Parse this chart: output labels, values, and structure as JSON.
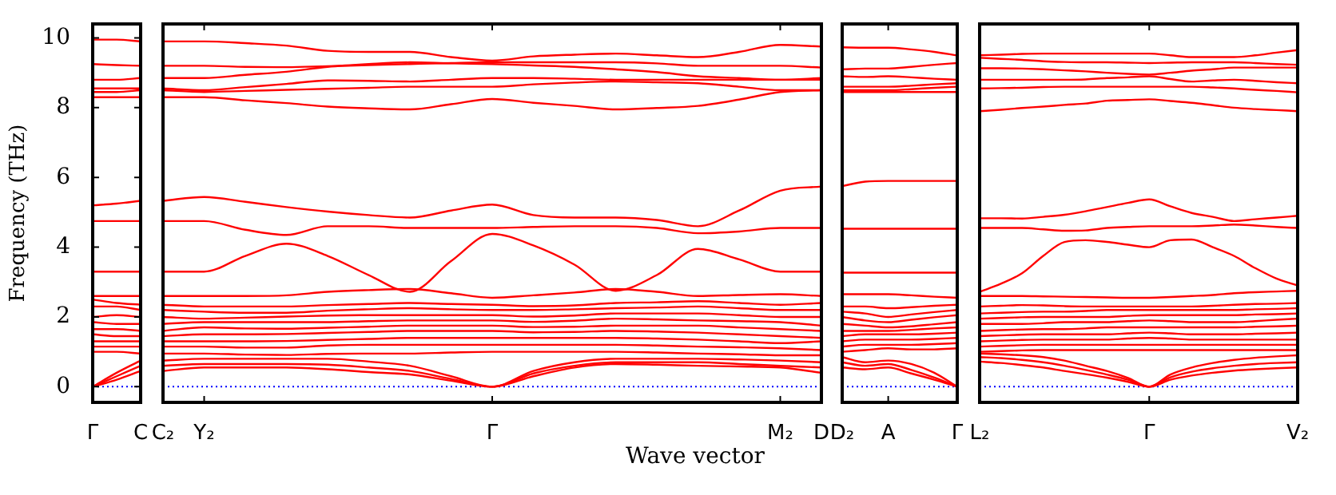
{
  "chart_data": [
    {
      "type": "line",
      "ylabel": "Frequency (THz)",
      "categories": [
        "Γ",
        null,
        "C"
      ],
      "ylim": [
        -0.45,
        10.4
      ],
      "yticks": [
        0,
        2,
        4,
        6,
        8,
        10
      ],
      "ref_lines": [
        {
          "axis": "y",
          "value": 0,
          "color": "#0000ff",
          "line_style": "dotted"
        }
      ],
      "series": [
        {
          "color": "#ff0000",
          "values": [
            9.95,
            9.95,
            9.9
          ]
        },
        {
          "color": "#ff0000",
          "values": [
            9.25,
            9.22,
            9.2
          ]
        },
        {
          "color": "#ff0000",
          "values": [
            8.8,
            8.8,
            8.85
          ]
        },
        {
          "color": "#ff0000",
          "values": [
            8.55,
            8.55,
            8.55
          ]
        },
        {
          "color": "#ff0000",
          "values": [
            8.45,
            8.45,
            8.5
          ]
        },
        {
          "color": "#ff0000",
          "values": [
            8.3,
            8.3,
            8.3
          ]
        },
        {
          "color": "#ff0000",
          "values": [
            5.2,
            5.25,
            5.33
          ]
        },
        {
          "color": "#ff0000",
          "values": [
            4.75,
            4.75,
            4.75
          ]
        },
        {
          "color": "#ff0000",
          "values": [
            3.3,
            3.3,
            3.3
          ]
        },
        {
          "color": "#ff0000",
          "values": [
            2.6,
            2.6,
            2.6
          ]
        },
        {
          "color": "#ff0000",
          "values": [
            2.5,
            2.4,
            2.35
          ]
        },
        {
          "color": "#ff0000",
          "values": [
            2.3,
            2.3,
            2.2
          ]
        },
        {
          "color": "#ff0000",
          "values": [
            2.0,
            2.05,
            2.0
          ]
        },
        {
          "color": "#ff0000",
          "values": [
            1.85,
            1.8,
            1.8
          ]
        },
        {
          "color": "#ff0000",
          "values": [
            1.65,
            1.65,
            1.6
          ]
        },
        {
          "color": "#ff0000",
          "values": [
            1.5,
            1.45,
            1.45
          ]
        },
        {
          "color": "#ff0000",
          "values": [
            1.3,
            1.3,
            1.3
          ]
        },
        {
          "color": "#ff0000",
          "values": [
            1.15,
            1.15,
            1.15
          ]
        },
        {
          "color": "#ff0000",
          "values": [
            1.0,
            1.0,
            0.95
          ]
        },
        {
          "color": "#ff0000",
          "values": [
            0,
            0.4,
            0.75
          ]
        },
        {
          "color": "#ff0000",
          "values": [
            0,
            0.3,
            0.6
          ]
        },
        {
          "color": "#ff0000",
          "values": [
            0,
            0.2,
            0.45
          ]
        }
      ]
    },
    {
      "type": "line",
      "xlabel": "Wave vector",
      "categories": [
        "C₂",
        "Y₂",
        null,
        null,
        null,
        null,
        null,
        null,
        "Γ",
        null,
        null,
        null,
        null,
        null,
        null,
        "M₂",
        "D"
      ],
      "ylim": [
        -0.45,
        10.4
      ],
      "tick_labels": "x",
      "ref_lines": [
        {
          "axis": "y",
          "value": 0,
          "color": "#0000ff",
          "line_style": "dotted"
        }
      ],
      "series": [
        {
          "color": "#ff0000",
          "values": [
            9.9,
            9.9,
            9.85,
            9.78,
            9.63,
            9.6,
            9.6,
            9.45,
            9.35,
            9.47,
            9.52,
            9.55,
            9.5,
            9.45,
            9.6,
            9.8,
            9.75
          ]
        },
        {
          "color": "#ff0000",
          "values": [
            9.2,
            9.2,
            9.17,
            9.16,
            9.19,
            9.22,
            9.25,
            9.28,
            9.3,
            9.3,
            9.3,
            9.3,
            9.27,
            9.2,
            9.2,
            9.2,
            9.15
          ]
        },
        {
          "color": "#ff0000",
          "values": [
            8.85,
            8.85,
            8.94,
            9.03,
            9.17,
            9.25,
            9.3,
            9.27,
            9.25,
            9.21,
            9.17,
            9.1,
            9.02,
            8.9,
            8.85,
            8.8,
            8.8
          ]
        },
        {
          "color": "#ff0000",
          "values": [
            8.55,
            8.5,
            8.59,
            8.68,
            8.78,
            8.77,
            8.75,
            8.8,
            8.85,
            8.85,
            8.83,
            8.8,
            8.8,
            8.8,
            8.8,
            8.8,
            8.85
          ]
        },
        {
          "color": "#ff0000",
          "values": [
            8.5,
            8.45,
            8.48,
            8.51,
            8.54,
            8.57,
            8.6,
            8.6,
            8.6,
            8.67,
            8.72,
            8.75,
            8.73,
            8.7,
            8.6,
            8.5,
            8.5
          ]
        },
        {
          "color": "#ff0000",
          "values": [
            8.3,
            8.3,
            8.21,
            8.13,
            8.03,
            7.98,
            7.95,
            8.1,
            8.25,
            8.14,
            8.05,
            7.95,
            7.99,
            8.05,
            8.23,
            8.45,
            8.5
          ]
        },
        {
          "color": "#ff0000",
          "values": [
            5.33,
            5.44,
            5.3,
            5.15,
            5.02,
            4.92,
            4.85,
            5.05,
            5.22,
            4.92,
            4.85,
            4.85,
            4.78,
            4.6,
            5.05,
            5.62,
            5.74
          ]
        },
        {
          "color": "#ff0000",
          "values": [
            4.75,
            4.75,
            4.5,
            4.35,
            4.6,
            4.6,
            4.55,
            4.55,
            4.55,
            4.58,
            4.6,
            4.6,
            4.55,
            4.4,
            4.45,
            4.55,
            4.55
          ]
        },
        {
          "color": "#ff0000",
          "values": [
            3.3,
            3.3,
            3.75,
            4.1,
            3.75,
            3.2,
            2.72,
            3.6,
            4.38,
            4.05,
            3.5,
            2.75,
            3.2,
            3.95,
            3.65,
            3.3,
            3.3
          ]
        },
        {
          "color": "#ff0000",
          "values": [
            2.6,
            2.6,
            2.6,
            2.62,
            2.72,
            2.77,
            2.8,
            2.68,
            2.55,
            2.62,
            2.7,
            2.8,
            2.72,
            2.6,
            2.63,
            2.65,
            2.6
          ]
        },
        {
          "color": "#ff0000",
          "values": [
            2.35,
            2.3,
            2.3,
            2.3,
            2.34,
            2.37,
            2.4,
            2.37,
            2.35,
            2.31,
            2.33,
            2.4,
            2.42,
            2.45,
            2.4,
            2.35,
            2.4
          ]
        },
        {
          "color": "#ff0000",
          "values": [
            2.2,
            2.15,
            2.12,
            2.12,
            2.18,
            2.22,
            2.25,
            2.22,
            2.2,
            2.2,
            2.22,
            2.25,
            2.27,
            2.3,
            2.25,
            2.2,
            2.2
          ]
        },
        {
          "color": "#ff0000",
          "values": [
            2.0,
            1.95,
            1.98,
            2.01,
            2.04,
            2.05,
            2.05,
            2.05,
            2.05,
            2.01,
            2.04,
            2.1,
            2.1,
            2.1,
            2.05,
            2.0,
            2.0
          ]
        },
        {
          "color": "#ff0000",
          "values": [
            1.8,
            1.85,
            1.85,
            1.85,
            1.85,
            1.88,
            1.9,
            1.9,
            1.9,
            1.86,
            1.89,
            1.95,
            1.93,
            1.9,
            1.88,
            1.85,
            1.75
          ]
        },
        {
          "color": "#ff0000",
          "values": [
            1.6,
            1.7,
            1.67,
            1.66,
            1.69,
            1.72,
            1.75,
            1.75,
            1.75,
            1.71,
            1.72,
            1.75,
            1.75,
            1.75,
            1.7,
            1.65,
            1.6
          ]
        },
        {
          "color": "#ff0000",
          "values": [
            1.45,
            1.5,
            1.5,
            1.51,
            1.54,
            1.57,
            1.6,
            1.6,
            1.6,
            1.56,
            1.57,
            1.6,
            1.58,
            1.55,
            1.5,
            1.45,
            1.4
          ]
        },
        {
          "color": "#ff0000",
          "values": [
            1.3,
            1.3,
            1.3,
            1.31,
            1.34,
            1.37,
            1.4,
            1.4,
            1.4,
            1.4,
            1.4,
            1.4,
            1.38,
            1.35,
            1.3,
            1.25,
            1.3
          ]
        },
        {
          "color": "#ff0000",
          "values": [
            1.15,
            1.15,
            1.12,
            1.12,
            1.18,
            1.2,
            1.2,
            1.2,
            1.2,
            1.2,
            1.2,
            1.2,
            1.18,
            1.15,
            1.13,
            1.1,
            1.05
          ]
        },
        {
          "color": "#ff0000",
          "values": [
            0.95,
            0.95,
            0.92,
            0.91,
            0.94,
            0.95,
            0.95,
            0.98,
            1.0,
            1.0,
            1.0,
            1.0,
            0.98,
            0.95,
            0.93,
            0.9,
            0.9
          ]
        },
        {
          "color": "#ff0000",
          "values": [
            0.75,
            0.8,
            0.8,
            0.8,
            0.8,
            0.72,
            0.6,
            0.3,
            0,
            0.45,
            0.7,
            0.8,
            0.8,
            0.8,
            0.78,
            0.75,
            0.7
          ]
        },
        {
          "color": "#ff0000",
          "values": [
            0.6,
            0.65,
            0.65,
            0.65,
            0.63,
            0.55,
            0.45,
            0.22,
            0,
            0.38,
            0.6,
            0.7,
            0.7,
            0.7,
            0.65,
            0.6,
            0.55
          ]
        },
        {
          "color": "#ff0000",
          "values": [
            0.45,
            0.55,
            0.55,
            0.55,
            0.5,
            0.42,
            0.35,
            0.17,
            0,
            0.3,
            0.55,
            0.65,
            0.63,
            0.6,
            0.58,
            0.55,
            0.4
          ]
        }
      ]
    },
    {
      "type": "line",
      "categories": [
        "D₂",
        null,
        "A",
        null,
        null,
        "Γ"
      ],
      "ylim": [
        -0.45,
        10.4
      ],
      "tick_labels": "x",
      "ref_lines": [
        {
          "axis": "y",
          "value": 0,
          "color": "#0000ff",
          "line_style": "dotted"
        }
      ],
      "series": [
        {
          "color": "#ff0000",
          "values": [
            9.73,
            9.72,
            9.72,
            9.67,
            9.6,
            9.5
          ]
        },
        {
          "color": "#ff0000",
          "values": [
            9.1,
            9.12,
            9.12,
            9.17,
            9.23,
            9.28
          ]
        },
        {
          "color": "#ff0000",
          "values": [
            8.9,
            8.88,
            8.9,
            8.87,
            8.83,
            8.8
          ]
        },
        {
          "color": "#ff0000",
          "values": [
            8.6,
            8.6,
            8.6,
            8.63,
            8.67,
            8.7
          ]
        },
        {
          "color": "#ff0000",
          "values": [
            8.5,
            8.5,
            8.5,
            8.53,
            8.57,
            8.6
          ]
        },
        {
          "color": "#ff0000",
          "values": [
            8.45,
            8.45,
            8.45,
            8.45,
            8.45,
            8.45
          ]
        },
        {
          "color": "#ff0000",
          "values": [
            5.75,
            5.88,
            5.9,
            5.9,
            5.9,
            5.9
          ]
        },
        {
          "color": "#ff0000",
          "values": [
            4.53,
            4.53,
            4.53,
            4.53,
            4.53,
            4.53
          ]
        },
        {
          "color": "#ff0000",
          "values": [
            3.27,
            3.27,
            3.27,
            3.27,
            3.27,
            3.27
          ]
        },
        {
          "color": "#ff0000",
          "values": [
            2.65,
            2.65,
            2.65,
            2.62,
            2.58,
            2.55
          ]
        },
        {
          "color": "#ff0000",
          "values": [
            2.3,
            2.3,
            2.25,
            2.28,
            2.32,
            2.35
          ]
        },
        {
          "color": "#ff0000",
          "values": [
            2.15,
            2.1,
            2.0,
            2.07,
            2.14,
            2.2
          ]
        },
        {
          "color": "#ff0000",
          "values": [
            2.0,
            1.9,
            1.85,
            1.92,
            1.99,
            2.05
          ]
        },
        {
          "color": "#ff0000",
          "values": [
            1.8,
            1.75,
            1.7,
            1.73,
            1.79,
            1.85
          ]
        },
        {
          "color": "#ff0000",
          "values": [
            1.6,
            1.6,
            1.6,
            1.63,
            1.67,
            1.7
          ]
        },
        {
          "color": "#ff0000",
          "values": [
            1.45,
            1.5,
            1.5,
            1.5,
            1.52,
            1.55
          ]
        },
        {
          "color": "#ff0000",
          "values": [
            1.3,
            1.35,
            1.35,
            1.35,
            1.37,
            1.4
          ]
        },
        {
          "color": "#ff0000",
          "values": [
            1.15,
            1.2,
            1.2,
            1.2,
            1.22,
            1.25
          ]
        },
        {
          "color": "#ff0000",
          "values": [
            1.0,
            1.05,
            1.1,
            1.07,
            1.07,
            1.1
          ]
        },
        {
          "color": "#ff0000",
          "values": [
            0.85,
            0.7,
            0.75,
            0.65,
            0.4,
            0
          ]
        },
        {
          "color": "#ff0000",
          "values": [
            0.7,
            0.6,
            0.65,
            0.48,
            0.26,
            0
          ]
        },
        {
          "color": "#ff0000",
          "values": [
            0.55,
            0.5,
            0.55,
            0.38,
            0.2,
            0
          ]
        }
      ]
    },
    {
      "type": "line",
      "categories": [
        "L₂",
        null,
        null,
        null,
        null,
        null,
        null,
        null,
        "Γ",
        null,
        null,
        null,
        null,
        null,
        null,
        "V₂"
      ],
      "ylim": [
        -0.45,
        10.4
      ],
      "tick_labels": "x",
      "ref_lines": [
        {
          "axis": "y",
          "value": 0,
          "color": "#0000ff",
          "line_style": "dotted"
        }
      ],
      "series": [
        {
          "color": "#ff0000",
          "values": [
            9.5,
            9.52,
            9.54,
            9.55,
            9.55,
            9.55,
            9.55,
            9.55,
            9.55,
            9.5,
            9.45,
            9.45,
            9.45,
            9.5,
            9.58,
            9.65
          ]
        },
        {
          "color": "#ff0000",
          "values": [
            9.43,
            9.4,
            9.37,
            9.33,
            9.31,
            9.3,
            9.3,
            9.29,
            9.28,
            9.29,
            9.3,
            9.3,
            9.3,
            9.28,
            9.25,
            9.23
          ]
        },
        {
          "color": "#ff0000",
          "values": [
            9.13,
            9.13,
            9.12,
            9.1,
            9.07,
            9.04,
            9.0,
            8.97,
            8.95,
            9.0,
            9.06,
            9.1,
            9.15,
            9.15,
            9.15,
            9.15
          ]
        },
        {
          "color": "#ff0000",
          "values": [
            8.8,
            8.8,
            8.8,
            8.8,
            8.8,
            8.81,
            8.85,
            8.87,
            8.9,
            8.82,
            8.75,
            8.78,
            8.8,
            8.77,
            8.73,
            8.7
          ]
        },
        {
          "color": "#ff0000",
          "values": [
            8.55,
            8.56,
            8.57,
            8.59,
            8.6,
            8.6,
            8.6,
            8.6,
            8.6,
            8.6,
            8.6,
            8.58,
            8.55,
            8.51,
            8.48,
            8.44
          ]
        },
        {
          "color": "#ff0000",
          "values": [
            7.9,
            7.94,
            7.99,
            8.03,
            8.08,
            8.12,
            8.2,
            8.22,
            8.24,
            8.19,
            8.14,
            8.07,
            8.0,
            7.96,
            7.93,
            7.9
          ]
        },
        {
          "color": "#ff0000",
          "values": [
            4.83,
            4.83,
            4.82,
            4.87,
            4.93,
            5.03,
            5.15,
            5.27,
            5.37,
            5.17,
            4.98,
            4.87,
            4.75,
            4.8,
            4.85,
            4.9
          ]
        },
        {
          "color": "#ff0000",
          "values": [
            4.55,
            4.55,
            4.55,
            4.51,
            4.47,
            4.48,
            4.55,
            4.58,
            4.6,
            4.6,
            4.6,
            4.62,
            4.65,
            4.62,
            4.58,
            4.55
          ]
        },
        {
          "color": "#ff0000",
          "values": [
            2.72,
            2.95,
            3.25,
            3.75,
            4.15,
            4.2,
            4.15,
            4.07,
            4.0,
            4.2,
            4.22,
            4.0,
            3.75,
            3.4,
            3.1,
            2.9
          ]
        },
        {
          "color": "#ff0000",
          "values": [
            2.6,
            2.6,
            2.6,
            2.59,
            2.58,
            2.57,
            2.56,
            2.55,
            2.55,
            2.57,
            2.6,
            2.63,
            2.68,
            2.71,
            2.73,
            2.75
          ]
        },
        {
          "color": "#ff0000",
          "values": [
            2.3,
            2.32,
            2.34,
            2.33,
            2.31,
            2.3,
            2.3,
            2.3,
            2.3,
            2.3,
            2.3,
            2.32,
            2.35,
            2.37,
            2.38,
            2.4
          ]
        },
        {
          "color": "#ff0000",
          "values": [
            2.1,
            2.12,
            2.14,
            2.15,
            2.15,
            2.17,
            2.2,
            2.2,
            2.2,
            2.2,
            2.2,
            2.2,
            2.2,
            2.22,
            2.23,
            2.25
          ]
        },
        {
          "color": "#ff0000",
          "values": [
            1.95,
            1.97,
            1.99,
            2.0,
            2.0,
            2.0,
            2.0,
            2.03,
            2.05,
            2.05,
            2.05,
            2.05,
            2.05,
            2.07,
            2.08,
            2.1
          ]
        },
        {
          "color": "#ff0000",
          "values": [
            1.8,
            1.8,
            1.8,
            1.82,
            1.85,
            1.85,
            1.85,
            1.88,
            1.9,
            1.88,
            1.85,
            1.85,
            1.85,
            1.88,
            1.92,
            1.95
          ]
        },
        {
          "color": "#ff0000",
          "values": [
            1.6,
            1.62,
            1.64,
            1.65,
            1.65,
            1.67,
            1.7,
            1.7,
            1.7,
            1.7,
            1.7,
            1.7,
            1.7,
            1.72,
            1.73,
            1.75
          ]
        },
        {
          "color": "#ff0000",
          "values": [
            1.45,
            1.47,
            1.49,
            1.5,
            1.5,
            1.5,
            1.5,
            1.53,
            1.55,
            1.53,
            1.5,
            1.5,
            1.5,
            1.52,
            1.53,
            1.55
          ]
        },
        {
          "color": "#ff0000",
          "values": [
            1.3,
            1.32,
            1.34,
            1.35,
            1.35,
            1.35,
            1.35,
            1.38,
            1.4,
            1.38,
            1.35,
            1.35,
            1.35,
            1.35,
            1.35,
            1.35
          ]
        },
        {
          "color": "#ff0000",
          "values": [
            1.15,
            1.17,
            1.19,
            1.2,
            1.2,
            1.2,
            1.2,
            1.2,
            1.2,
            1.2,
            1.2,
            1.2,
            1.2,
            1.2,
            1.2,
            1.2
          ]
        },
        {
          "color": "#ff0000",
          "values": [
            1.0,
            1.02,
            1.04,
            1.05,
            1.05,
            1.05,
            1.05,
            1.05,
            1.05,
            1.05,
            1.05,
            1.05,
            1.05,
            1.05,
            1.05,
            1.05
          ]
        },
        {
          "color": "#ff0000",
          "values": [
            0.95,
            0.93,
            0.9,
            0.85,
            0.75,
            0.6,
            0.45,
            0.25,
            0,
            0.35,
            0.55,
            0.68,
            0.77,
            0.83,
            0.87,
            0.9
          ]
        },
        {
          "color": "#ff0000",
          "values": [
            0.85,
            0.82,
            0.77,
            0.7,
            0.6,
            0.48,
            0.35,
            0.2,
            0,
            0.27,
            0.43,
            0.53,
            0.6,
            0.65,
            0.68,
            0.7
          ]
        },
        {
          "color": "#ff0000",
          "values": [
            0.72,
            0.68,
            0.62,
            0.55,
            0.45,
            0.36,
            0.26,
            0.14,
            0,
            0.2,
            0.32,
            0.4,
            0.46,
            0.5,
            0.53,
            0.55
          ]
        }
      ]
    }
  ]
}
